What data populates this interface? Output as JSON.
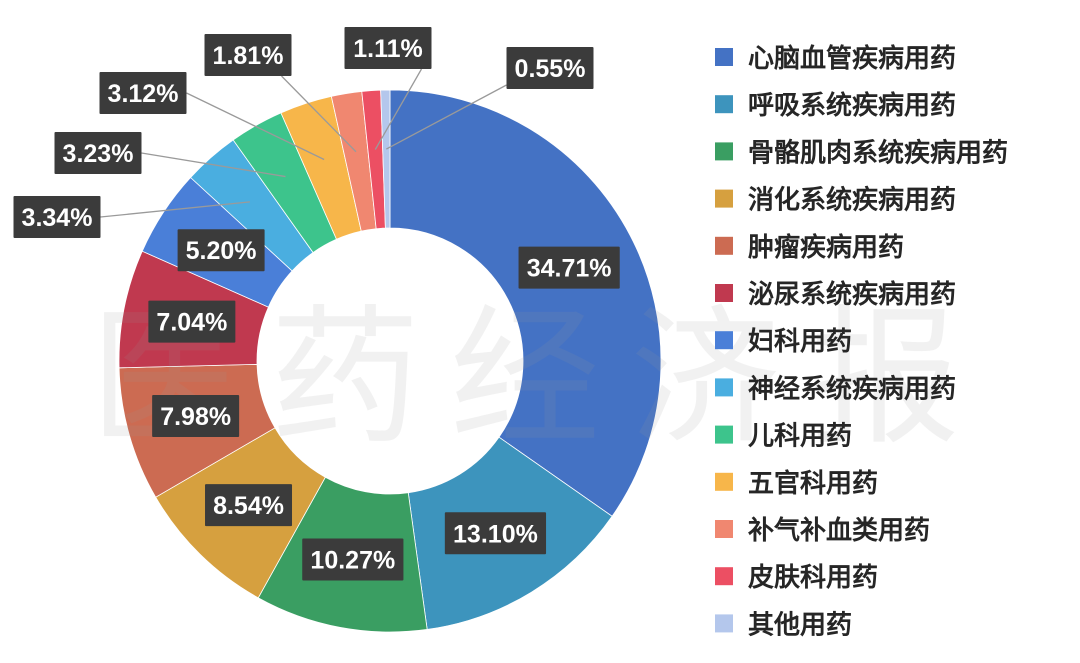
{
  "watermark": "医药经济报",
  "chart_data": {
    "type": "donut",
    "categories": [
      "心脑血管疾病用药",
      "呼吸系统疾病用药",
      "骨骼肌肉系统疾病用药",
      "消化系统疾病用药",
      "肿瘤疾病用药",
      "泌尿系统疾病用药",
      "妇科用药",
      "神经系统疾病用药",
      "儿科用药",
      "五官科用药",
      "补气补血类用药",
      "皮肤科用药",
      "其他用药"
    ],
    "values": [
      34.71,
      13.1,
      10.27,
      8.54,
      7.98,
      7.04,
      5.2,
      3.34,
      3.23,
      3.12,
      1.81,
      1.11,
      0.55
    ],
    "labels": [
      "34.71%",
      "13.10%",
      "10.27%",
      "8.54%",
      "7.98%",
      "7.04%",
      "5.20%",
      "3.34%",
      "3.23%",
      "3.12%",
      "1.81%",
      "1.11%",
      "0.55%"
    ],
    "colors": [
      "#4472C4",
      "#3D94BD",
      "#3A9E62",
      "#D6A03F",
      "#CC6B52",
      "#C0394F",
      "#4A7FD8",
      "#4AAEE0",
      "#3DC48C",
      "#F7B64A",
      "#F08770",
      "#EC4F63",
      "#B4C7EC"
    ],
    "legend_position": "right"
  }
}
